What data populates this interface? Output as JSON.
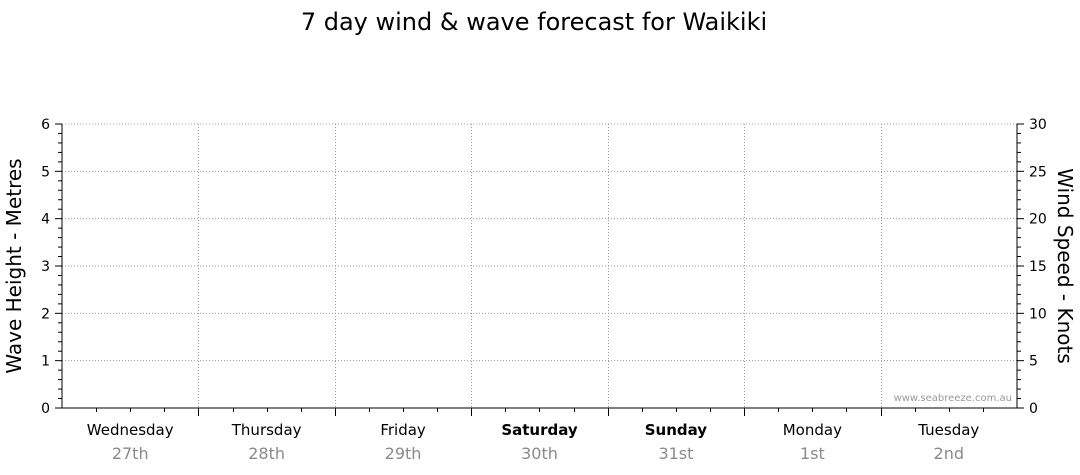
{
  "chart_data": {
    "type": "line",
    "title": "7 day wind & wave forecast for Waikiki",
    "ylabel_left": "Wave Height - Metres",
    "ylabel_right": "Wind Speed - Knots",
    "ylim_left": [
      0,
      6
    ],
    "ylim_right": [
      0,
      30
    ],
    "yticks_left": [
      "0",
      "1",
      "2",
      "3",
      "4",
      "5",
      "6"
    ],
    "yticks_right": [
      "0",
      "5",
      "10",
      "15",
      "20",
      "25",
      "30"
    ],
    "grid": true,
    "days": [
      {
        "name": "Wednesday",
        "date": "27th",
        "bold": false
      },
      {
        "name": "Thursday",
        "date": "28th",
        "bold": false
      },
      {
        "name": "Friday",
        "date": "29th",
        "bold": false
      },
      {
        "name": "Saturday",
        "date": "30th",
        "bold": true
      },
      {
        "name": "Sunday",
        "date": "31st",
        "bold": true
      },
      {
        "name": "Monday",
        "date": "1st",
        "bold": false
      },
      {
        "name": "Tuesday",
        "date": "2nd",
        "bold": false
      }
    ],
    "series": [],
    "watermark": "www.seabreeze.com.au"
  }
}
